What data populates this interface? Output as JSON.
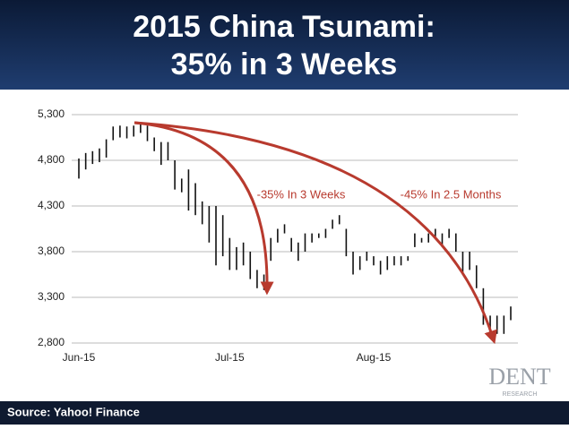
{
  "chart_data": {
    "type": "range_bar",
    "title": [
      "2015 China Tsunami:",
      "35% in 3 Weeks"
    ],
    "source": "Source: Yahoo! Finance",
    "logo": [
      "DENT",
      "RESEARCH"
    ],
    "annotations": [
      "-35% In 3 Weeks",
      "-45% In 2.5 Months"
    ],
    "color": "#111111",
    "grid": true,
    "ylim": [
      2800,
      5300
    ],
    "yticks": [
      {
        "value": 2800,
        "label": "2,800"
      },
      {
        "value": 3300,
        "label": "3,300"
      },
      {
        "value": 3800,
        "label": "3,800"
      },
      {
        "value": 4300,
        "label": "4,300"
      },
      {
        "value": 4800,
        "label": "4,800"
      },
      {
        "value": 5300,
        "label": "5,300"
      }
    ],
    "categories": [
      "Jun-15",
      null,
      null,
      null,
      null,
      null,
      null,
      null,
      null,
      null,
      null,
      null,
      null,
      null,
      null,
      null,
      null,
      null,
      null,
      null,
      null,
      null,
      "Jul-15",
      null,
      null,
      null,
      null,
      null,
      null,
      null,
      null,
      null,
      null,
      null,
      null,
      null,
      null,
      null,
      null,
      null,
      null,
      null,
      null,
      "Aug-15",
      null,
      null,
      null,
      null,
      null,
      null,
      null,
      null,
      null,
      null,
      null,
      null,
      null,
      null,
      null,
      null,
      null,
      null,
      null,
      null
    ],
    "low": [
      4600,
      4700,
      4760,
      4780,
      4830,
      5020,
      5050,
      5040,
      5060,
      5100,
      5010,
      4900,
      4750,
      4800,
      4480,
      4450,
      4250,
      4200,
      4100,
      3900,
      3650,
      3750,
      3600,
      3600,
      3650,
      3500,
      3400,
      3380,
      3700,
      3900,
      4000,
      3800,
      3700,
      3800,
      3900,
      3950,
      3950,
      4050,
      4100,
      3750,
      3550,
      3600,
      3700,
      3650,
      3550,
      3600,
      3650,
      3650,
      3700,
      3850,
      3900,
      3900,
      3950,
      3850,
      3950,
      3800,
      3550,
      3600,
      3400,
      3000,
      2850,
      2900,
      2900,
      3050
    ],
    "high": [
      4820,
      4880,
      4900,
      4930,
      5030,
      5170,
      5180,
      5170,
      5180,
      5200,
      5180,
      5050,
      5000,
      5000,
      4800,
      4600,
      4700,
      4550,
      4350,
      4300,
      4300,
      4200,
      3950,
      3850,
      3900,
      3800,
      3600,
      3550,
      3950,
      4050,
      4100,
      3950,
      3900,
      4000,
      4000,
      4000,
      4050,
      4150,
      4200,
      4050,
      3800,
      3750,
      3800,
      3750,
      3700,
      3750,
      3750,
      3750,
      3750,
      4000,
      3950,
      4000,
      4050,
      4000,
      4050,
      4000,
      3800,
      3800,
      3650,
      3400,
      3100,
      3100,
      3100,
      3200
    ]
  }
}
